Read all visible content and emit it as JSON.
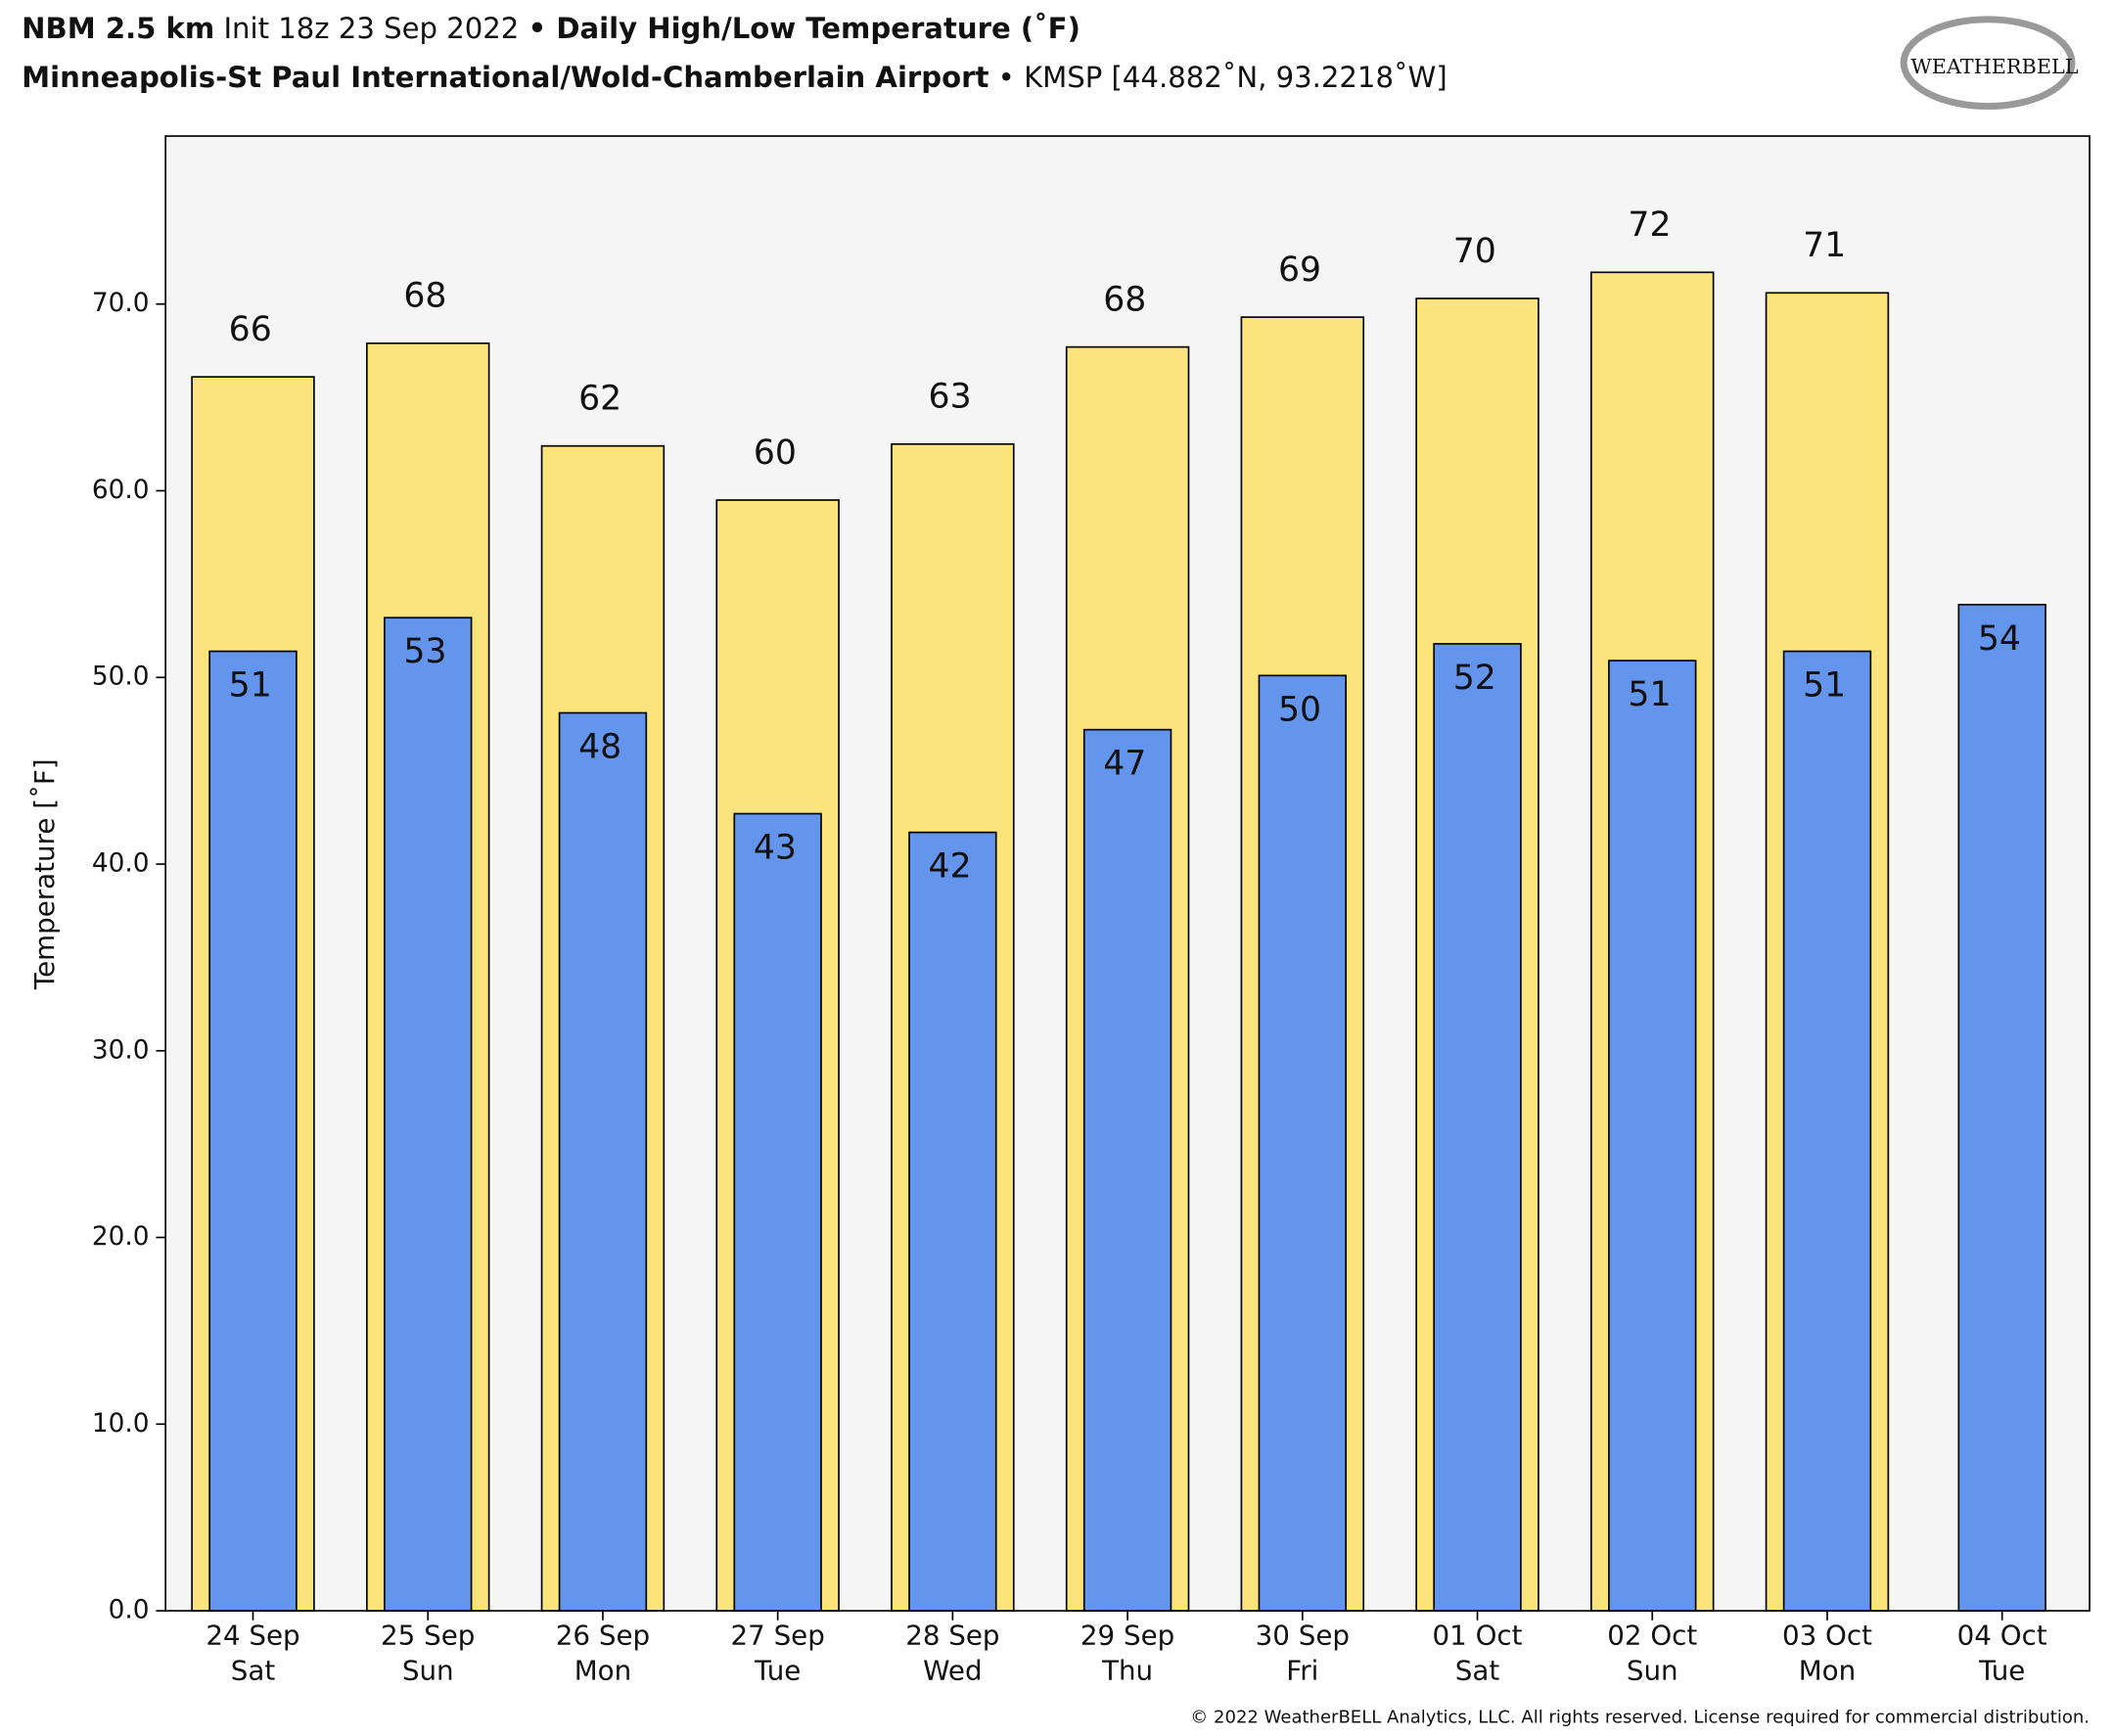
{
  "chart_data": {
    "type": "bar",
    "title_parts": [
      "NBM 2.5 km",
      " Init 18z 23 Sep 2022 ",
      "• Daily High/Low Temperature (˚F)"
    ],
    "subtitle_parts": [
      "Minneapolis-St Paul International/Wold-Chamberlain Airport",
      " • KMSP [44.882˚N, 93.2218˚W]"
    ],
    "logo": "WEATHERBELL",
    "y_label": "Temperature [˚F]",
    "footer": "© 2022 WeatherBELL Analytics, LLC. All rights reserved. License required for commercial distribution.",
    "categories": [
      "24 Sep",
      "25 Sep",
      "26 Sep",
      "27 Sep",
      "28 Sep",
      "29 Sep",
      "30 Sep",
      "01 Oct",
      "02 Oct",
      "03 Oct",
      "04 Oct"
    ],
    "weekdays": [
      "Sat",
      "Sun",
      "Mon",
      "Tue",
      "Wed",
      "Thu",
      "Fri",
      "Sat",
      "Sun",
      "Mon",
      "Tue"
    ],
    "series": [
      {
        "color": "#fce47c",
        "values": [
          66.1,
          67.9,
          62.4,
          59.5,
          62.5,
          67.7,
          69.3,
          70.3,
          71.7,
          70.6,
          null
        ],
        "value_labels": [
          "66",
          "68",
          "62",
          "60",
          "63",
          "68",
          "69",
          "70",
          "72",
          "71",
          null
        ]
      },
      {
        "color": "#6495ed",
        "values": [
          51.4,
          53.2,
          48.1,
          42.7,
          41.7,
          47.2,
          50.1,
          51.8,
          50.9,
          51.4,
          53.9
        ],
        "value_labels": [
          "51",
          "53",
          "48",
          "43",
          "42",
          "47",
          "50",
          "52",
          "51",
          "51",
          "54"
        ]
      }
    ],
    "ylim": [
      0,
      79
    ],
    "yticks": [
      {
        "value": 0,
        "label": "0.0"
      },
      {
        "value": 10,
        "label": "10.0"
      },
      {
        "value": 20,
        "label": "20.0"
      },
      {
        "value": 30,
        "label": "30.0"
      },
      {
        "value": 40,
        "label": "40.0"
      },
      {
        "value": 50,
        "label": "50.0"
      },
      {
        "value": 60,
        "label": "60.0"
      },
      {
        "value": 70,
        "label": "70.0"
      }
    ],
    "plot_background": "#f5f5f6"
  }
}
